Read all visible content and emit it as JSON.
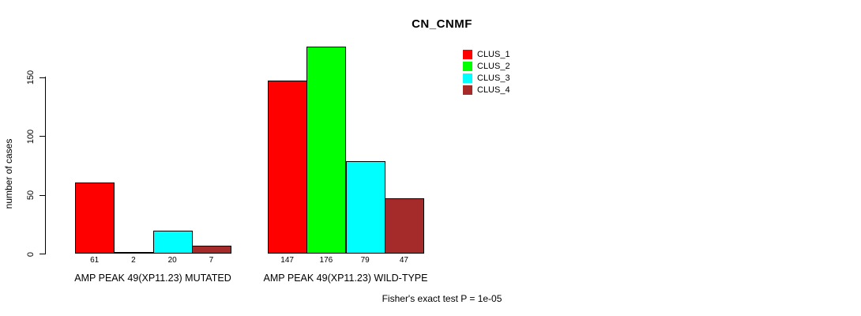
{
  "chart_data": {
    "type": "bar",
    "title": "CN_CNMF",
    "xlabel": "",
    "ylabel": "number of cases",
    "ylim": [
      0,
      176
    ],
    "yticks": [
      0,
      50,
      100,
      150
    ],
    "grid": false,
    "legend_position": "top-right",
    "bar_value_labels_shown": true,
    "groups": [
      "AMP PEAK 49(XP11.23) MUTATED",
      "AMP PEAK 49(XP11.23) WILD-TYPE"
    ],
    "series": [
      {
        "name": "CLUS_1",
        "color": "#FF0000",
        "values": [
          61,
          147
        ]
      },
      {
        "name": "CLUS_2",
        "color": "#00FF00",
        "values": [
          2,
          176
        ]
      },
      {
        "name": "CLUS_3",
        "color": "#00FFFF",
        "values": [
          20,
          79
        ]
      },
      {
        "name": "CLUS_4",
        "color": "#A52A2A",
        "values": [
          7,
          47
        ]
      }
    ],
    "annotation": "Fisher's exact test P = 1e-05"
  }
}
